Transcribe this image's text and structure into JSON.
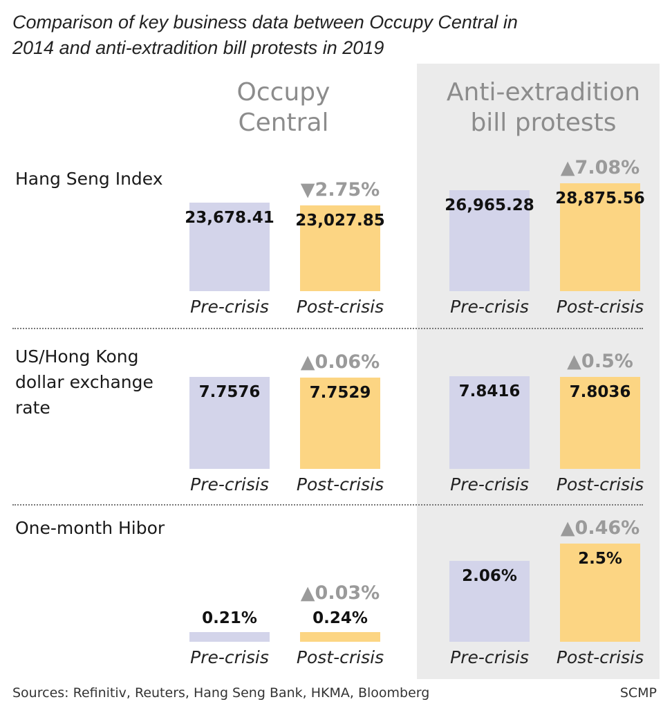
{
  "title": "Comparison of key business data between Occupy Central in 2014 and anti-extradition bill protests in 2019",
  "source": "Sources: Refinitiv, Reuters, Hang Seng Bank, HKMA, Bloomberg",
  "credit": "SCMP",
  "colors": {
    "pre": "#d3d4ea",
    "post": "#fcd583",
    "shade": "#ebebeb",
    "change_text": "#9a9a9a"
  },
  "chart_data": {
    "type": "bar",
    "groups": [
      "Occupy\nCentral",
      "Anti-extradition\nbill protests"
    ],
    "categories": [
      "Pre-crisis",
      "Post-crisis"
    ],
    "panels": [
      {
        "label": "Hang Seng Index",
        "groups": [
          {
            "pre": 23678.41,
            "post": 23027.85,
            "pre_label": "23,678.41",
            "post_label": "23,027.85",
            "change": "▼2.75%"
          },
          {
            "pre": 26965.28,
            "post": 28875.56,
            "pre_label": "26,965.28",
            "post_label": "28,875.56",
            "change": "▲7.08%"
          }
        ]
      },
      {
        "label": "US/Hong Kong dollar exchange rate",
        "groups": [
          {
            "pre": 7.7576,
            "post": 7.7529,
            "pre_label": "7.7576",
            "post_label": "7.7529",
            "change": "▲0.06%"
          },
          {
            "pre": 7.8416,
            "post": 7.8036,
            "pre_label": "7.8416",
            "post_label": "7.8036",
            "change": "▲0.5%"
          }
        ]
      },
      {
        "label": "One-month Hibor",
        "groups": [
          {
            "pre": 0.21,
            "post": 0.24,
            "pre_label": "0.21%",
            "post_label": "0.24%",
            "change": "▲0.03%"
          },
          {
            "pre": 2.06,
            "post": 2.5,
            "pre_label": "2.06%",
            "post_label": "2.5%",
            "change": "▲0.46%"
          }
        ]
      }
    ]
  }
}
